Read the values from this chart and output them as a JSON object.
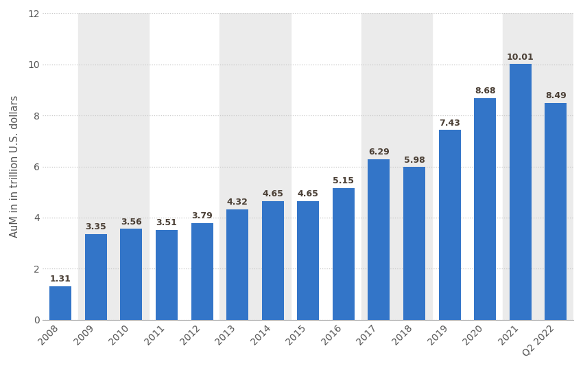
{
  "categories": [
    "2008",
    "2009",
    "2010",
    "2011",
    "2012",
    "2013",
    "2014",
    "2015",
    "2016",
    "2017",
    "2018",
    "2019",
    "2020",
    "2021",
    "Q2 2022"
  ],
  "values": [
    1.31,
    3.35,
    3.56,
    3.51,
    3.79,
    4.32,
    4.65,
    4.65,
    5.15,
    6.29,
    5.98,
    7.43,
    8.68,
    10.01,
    8.49
  ],
  "bar_color": "#3375c8",
  "ylabel": "AuM in in trillion U.S. dollars",
  "ylim": [
    0,
    12
  ],
  "yticks": [
    0,
    2,
    4,
    6,
    8,
    10,
    12
  ],
  "background_color": "#ffffff",
  "plot_bg_color": "#ffffff",
  "band_color": "#ebebeb",
  "grid_color": "#c8c8c8",
  "bar_label_fontsize": 9,
  "bar_label_color": "#4a3f35",
  "bar_label_fontweight": "bold",
  "axis_label_fontsize": 10.5,
  "axis_label_color": "#555555",
  "tick_label_fontsize": 10,
  "tick_label_color": "#555555",
  "band_indices": [
    1,
    2,
    5,
    6,
    9,
    10,
    13,
    14
  ]
}
